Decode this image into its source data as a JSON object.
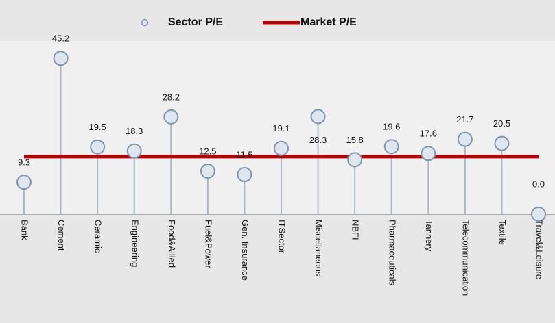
{
  "chart_data": {
    "type": "lollipop",
    "categories": [
      "Bank",
      "Cement",
      "Ceramic",
      "Engineering",
      "Food&Allied",
      "Fuel&Power",
      "Gen. Insurance",
      "ITSector",
      "Miscellaneous",
      "NBFI",
      "Pharmaceuticals",
      "Tannery",
      "Telecommunication",
      "Textile",
      "Travel&Leisure"
    ],
    "series": [
      {
        "name": "Sector P/E",
        "color": "#7d96b0",
        "values": [
          9.3,
          45.2,
          19.5,
          18.3,
          28.2,
          12.5,
          11.5,
          19.1,
          28.3,
          15.8,
          19.6,
          17.6,
          21.7,
          20.5,
          0.0
        ],
        "value_labels": [
          "9.3",
          "45.2",
          "19.5",
          "18.3",
          "28.2",
          "12.5",
          "11.5",
          "19.1",
          "28.3",
          "15.8",
          "19.6",
          "17.6",
          "21.7",
          "20.5",
          "0.0"
        ]
      },
      {
        "name": "Market P/E",
        "color": "#c00000",
        "values": [
          16.7,
          16.7,
          16.7,
          16.7,
          16.7,
          16.7,
          16.7,
          16.7,
          16.7,
          16.7,
          16.7,
          16.7,
          16.7,
          16.7,
          16.7
        ]
      }
    ],
    "ylim": [
      0,
      50
    ]
  }
}
